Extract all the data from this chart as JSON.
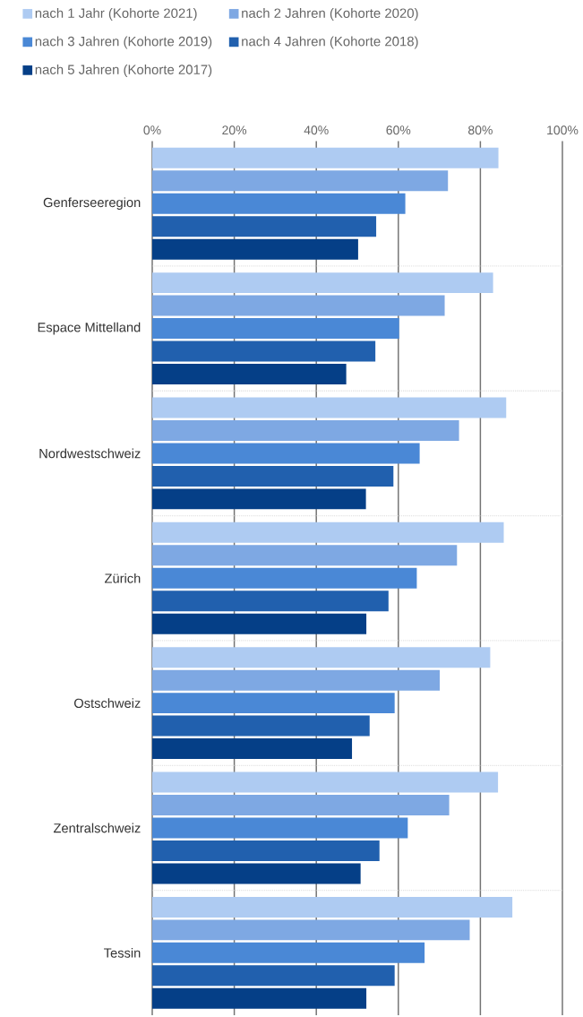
{
  "chart_data": {
    "type": "bar",
    "orientation": "horizontal",
    "categories": [
      "Genferseeregion",
      "Espace Mittelland",
      "Nordwestschweiz",
      "Zürich",
      "Ostschweiz",
      "Zentralschweiz",
      "Tessin"
    ],
    "series": [
      {
        "name": "nach 1 Jahr (Kohorte 2021)",
        "color": "#aecbf2",
        "values": [
          84.4,
          83.1,
          86.3,
          85.7,
          82.4,
          84.3,
          87.8
        ]
      },
      {
        "name": "nach 2 Jahren (Kohorte 2020)",
        "color": "#7ea8e3",
        "values": [
          72.1,
          71.3,
          74.8,
          74.3,
          70.1,
          72.4,
          77.4
        ]
      },
      {
        "name": "nach 3 Jahren (Kohorte 2019)",
        "color": "#4a88d6",
        "values": [
          61.7,
          60.2,
          65.2,
          64.5,
          59.1,
          62.3,
          66.4
        ]
      },
      {
        "name": "nach 4 Jahren (Kohorte 2018)",
        "color": "#2160ae",
        "values": [
          54.6,
          54.4,
          58.8,
          57.6,
          53.0,
          55.4,
          59.1
        ]
      },
      {
        "name": "nach 5 Jahren (Kohorte 2017)",
        "color": "#053f87",
        "values": [
          50.2,
          47.3,
          52.1,
          52.2,
          48.7,
          50.8,
          52.2
        ]
      }
    ],
    "xlim": [
      0,
      100
    ],
    "xticks": [
      {
        "value": 0,
        "label": "0%"
      },
      {
        "value": 20,
        "label": "20%"
      },
      {
        "value": 40,
        "label": "40%"
      },
      {
        "value": 60,
        "label": "60%"
      },
      {
        "value": 80,
        "label": "80%"
      },
      {
        "value": 100,
        "label": "100%"
      }
    ],
    "grid": "x",
    "legend": "top"
  }
}
